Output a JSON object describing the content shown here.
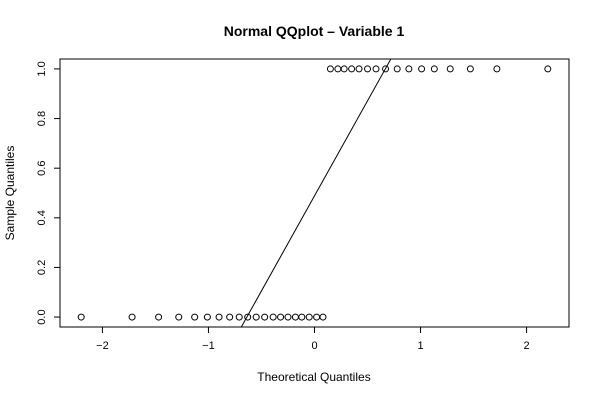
{
  "chart_data": {
    "type": "scatter",
    "title": "Normal QQplot – Variable 1",
    "xlabel": "Theoretical Quantiles",
    "ylabel": "Sample Quantiles",
    "xlim": [
      -2.4,
      2.4
    ],
    "ylim": [
      -0.04,
      1.04
    ],
    "xticks": [
      -2,
      -1,
      0,
      1,
      2
    ],
    "xtick_labels": [
      "−2",
      "−1",
      "0",
      "1",
      "2"
    ],
    "yticks": [
      0.0,
      0.2,
      0.4,
      0.6,
      0.8,
      1.0
    ],
    "ytick_labels": [
      "0.0",
      "0.2",
      "0.4",
      "0.6",
      "0.8",
      "1.0"
    ],
    "grid": false,
    "points": {
      "x": [
        -2.2,
        -1.72,
        -1.47,
        -1.28,
        -1.13,
        -1.01,
        -0.9,
        -0.8,
        -0.71,
        -0.63,
        -0.55,
        -0.47,
        -0.39,
        -0.32,
        -0.25,
        -0.18,
        -0.12,
        -0.05,
        0.02,
        0.08,
        0.15,
        0.22,
        0.28,
        0.35,
        0.42,
        0.5,
        0.58,
        0.67,
        0.78,
        0.89,
        1.01,
        1.13,
        1.28,
        1.47,
        1.72,
        2.2
      ],
      "y": [
        0,
        0,
        0,
        0,
        0,
        0,
        0,
        0,
        0,
        0,
        0,
        0,
        0,
        0,
        0,
        0,
        0,
        0,
        0,
        0,
        1,
        1,
        1,
        1,
        1,
        1,
        1,
        1,
        1,
        1,
        1,
        1,
        1,
        1,
        1,
        1
      ]
    },
    "qqline": {
      "x": [
        -0.69,
        0.72
      ],
      "y": [
        -0.04,
        1.04
      ]
    }
  }
}
